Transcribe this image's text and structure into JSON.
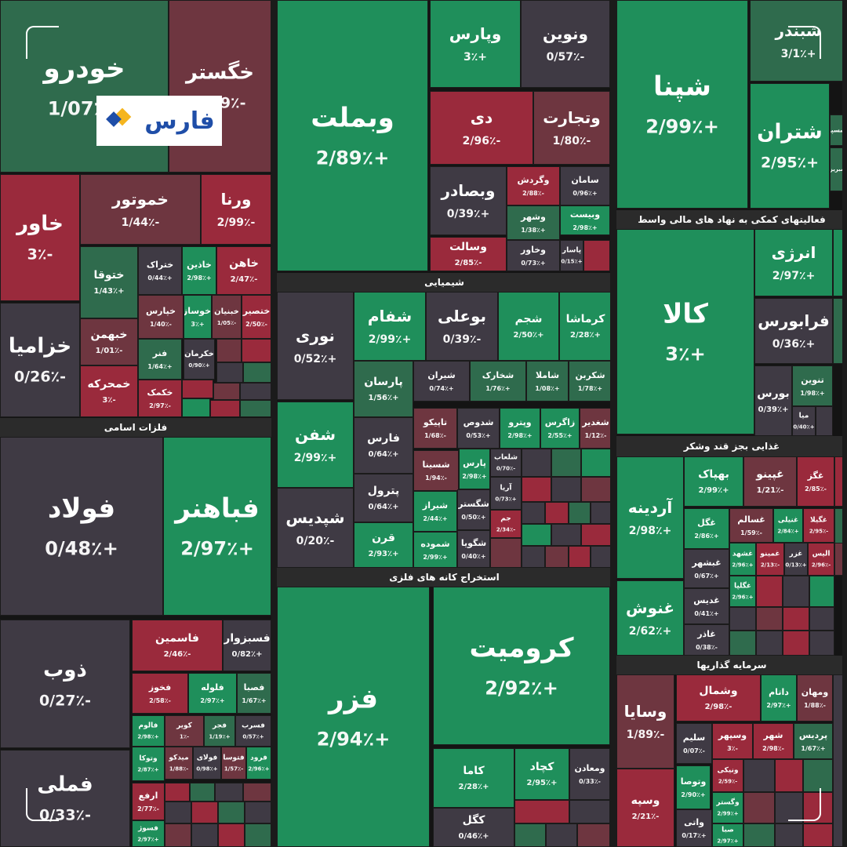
{
  "colors": {
    "green_strong": "#1f8f5b",
    "green_mid": "#2f6b4d",
    "red_strong": "#9a2a3c",
    "red_mid": "#6e3640",
    "neutral": "#3f3a44",
    "header_bg": "#2b2b2b"
  },
  "logo": {
    "text": "فارس",
    "icon": "fars-diamond-logo-icon"
  },
  "chart_data": {
    "type": "treemap",
    "sector_labels": {
      "fellaz": "فلزات اسامی",
      "shimiai": "شیمیایی",
      "estekhraj": "استخراج کانه های فلزی",
      "faaliat": "فعالیتهای کمکی به نهاد های مالی واسط",
      "ghazai": "غذایی بجز قند وشکر",
      "sarmaye": "سرمایه گذاریها"
    },
    "tiles": [
      {
        "name": "خودرو",
        "value": "+1/07٪",
        "c": 9
      },
      {
        "name": "خگستر",
        "value": "-1/39٪",
        "c": 8
      },
      {
        "name": "خاور",
        "value": "-3٪",
        "c": 1
      },
      {
        "name": "خموتور",
        "value": "-1/44٪",
        "c": 8
      },
      {
        "name": "ورنا",
        "value": "-2/99٪",
        "c": 1
      },
      {
        "name": "خزامیا",
        "value": "-0/26٪",
        "c": 0
      },
      {
        "name": "ختوقا",
        "value": "+1/43٪",
        "c": 9
      },
      {
        "name": "ختراک",
        "value": "+0/44٪",
        "c": 0
      },
      {
        "name": "خاذین",
        "value": "+2/98٪",
        "c": 2
      },
      {
        "name": "خاهن",
        "value": "-2/47٪",
        "c": 1
      },
      {
        "name": "خپارس",
        "value": "-1/40٪",
        "c": 8
      },
      {
        "name": "خوساز",
        "value": "+3٪",
        "c": 2
      },
      {
        "name": "خبنیان",
        "value": "-1/05٪",
        "c": 8
      },
      {
        "name": "ختصیر",
        "value": "-2/50٪",
        "c": 1
      },
      {
        "name": "خبهمن",
        "value": "-1/01٪",
        "c": 8
      },
      {
        "name": "فنر",
        "value": "+1/64٪",
        "c": 9
      },
      {
        "name": "خکرمان",
        "value": "+0/90٪",
        "c": 0
      },
      {
        "name": "خمحرکه",
        "value": "-3٪",
        "c": 1
      },
      {
        "name": "خکمک",
        "value": "-2/97٪",
        "c": 1
      },
      {
        "name": "وبملت",
        "value": "+2/89٪",
        "c": 2
      },
      {
        "name": "وپارس",
        "value": "+3٪",
        "c": 2
      },
      {
        "name": "ونوین",
        "value": "-0/57٪",
        "c": 0
      },
      {
        "name": "دی",
        "value": "-2/96٪",
        "c": 1
      },
      {
        "name": "وتجارت",
        "value": "-1/80٪",
        "c": 8
      },
      {
        "name": "وبصادر",
        "value": "+0/39٪",
        "c": 0
      },
      {
        "name": "وگردش",
        "value": "-2/88٪",
        "c": 1
      },
      {
        "name": "سامان",
        "value": "+0/96٪",
        "c": 0
      },
      {
        "name": "وشهر",
        "value": "+1/38٪",
        "c": 9
      },
      {
        "name": "وبیست",
        "value": "+2/98٪",
        "c": 2
      },
      {
        "name": "وسالت",
        "value": "-2/85٪",
        "c": 1
      },
      {
        "name": "وخاور",
        "value": "+0/73٪",
        "c": 0
      },
      {
        "name": "پاسار",
        "value": "+0/15٪",
        "c": 0
      },
      {
        "name": "شپنا",
        "value": "+2/99٪",
        "c": 2
      },
      {
        "name": "شبندر",
        "value": "+3/1٪",
        "c": 9
      },
      {
        "name": "شتران",
        "value": "+2/95٪",
        "c": 2
      },
      {
        "name": "شسپا",
        "value": "",
        "c": 9
      },
      {
        "name": "شبریز",
        "value": "",
        "c": 9
      },
      {
        "name": "نوری",
        "value": "+0/52٪",
        "c": 0
      },
      {
        "name": "شفام",
        "value": "+2/99٪",
        "c": 2
      },
      {
        "name": "بوعلی",
        "value": "-0/39٪",
        "c": 0
      },
      {
        "name": "شجم",
        "value": "+2/50٪",
        "c": 2
      },
      {
        "name": "کرماشا",
        "value": "+2/28٪",
        "c": 2
      },
      {
        "name": "پارسان",
        "value": "+1/56٪",
        "c": 9
      },
      {
        "name": "شیران",
        "value": "+0/74٪",
        "c": 0
      },
      {
        "name": "شخارک",
        "value": "+1/76٪",
        "c": 9
      },
      {
        "name": "شاملا",
        "value": "+1/08٪",
        "c": 9
      },
      {
        "name": "شکربن",
        "value": "+1/78٪",
        "c": 9
      },
      {
        "name": "شفن",
        "value": "+2/99٪",
        "c": 2
      },
      {
        "name": "تاپیکو",
        "value": "-1/68٪",
        "c": 8
      },
      {
        "name": "شدوص",
        "value": "+0/53٪",
        "c": 0
      },
      {
        "name": "وپترو",
        "value": "+2/98٪",
        "c": 2
      },
      {
        "name": "زاگرس",
        "value": "+2/55٪",
        "c": 2
      },
      {
        "name": "شغدیر",
        "value": "-1/12٪",
        "c": 8
      },
      {
        "name": "فارس",
        "value": "+0/64٪",
        "c": 0
      },
      {
        "name": "شسینا",
        "value": "-1/94٪",
        "c": 8
      },
      {
        "name": "پارس",
        "value": "+2/98٪",
        "c": 2
      },
      {
        "name": "شلعاب",
        "value": "-0/70٪",
        "c": 0
      },
      {
        "name": "شپدیس",
        "value": "-0/20٪",
        "c": 0
      },
      {
        "name": "پترول",
        "value": "+0/64٪",
        "c": 0
      },
      {
        "name": "شیراز",
        "value": "+2/44٪",
        "c": 2
      },
      {
        "name": "شگستر",
        "value": "+0/50٪",
        "c": 0
      },
      {
        "name": "آریا",
        "value": "+0/73٪",
        "c": 0
      },
      {
        "name": "قرن",
        "value": "+2/93٪",
        "c": 2
      },
      {
        "name": "شموده",
        "value": "+2/99٪",
        "c": 2
      },
      {
        "name": "شگویا",
        "value": "+0/40٪",
        "c": 0
      },
      {
        "name": "جم",
        "value": "-2/34٪",
        "c": 1
      },
      {
        "name": "فولاد",
        "value": "+0/48٪",
        "c": 0
      },
      {
        "name": "فباهنر",
        "value": "+2/97٪",
        "c": 2
      },
      {
        "name": "ذوب",
        "value": "-0/27٪",
        "c": 0
      },
      {
        "name": "فاسمین",
        "value": "-2/46٪",
        "c": 1
      },
      {
        "name": "فسبزوار",
        "value": "+0/82٪",
        "c": 0
      },
      {
        "name": "فخوز",
        "value": "-2/58٪",
        "c": 1
      },
      {
        "name": "فلوله",
        "value": "+2/97٪",
        "c": 2
      },
      {
        "name": "فصبا",
        "value": "+1/67٪",
        "c": 9
      },
      {
        "name": "فالوم",
        "value": "+2/98٪",
        "c": 2
      },
      {
        "name": "کویر",
        "value": "-1٪",
        "c": 8
      },
      {
        "name": "فجر",
        "value": "+1/19٪",
        "c": 9
      },
      {
        "name": "فسرب",
        "value": "+0/57٪",
        "c": 0
      },
      {
        "name": "فملی",
        "value": "-0/33٪",
        "c": 0
      },
      {
        "name": "وتوکا",
        "value": "+2/87٪",
        "c": 2
      },
      {
        "name": "میدکو",
        "value": "-1/88٪",
        "c": 8
      },
      {
        "name": "فولای",
        "value": "+0/98٪",
        "c": 0
      },
      {
        "name": "فتوسا",
        "value": "-1/57٪",
        "c": 8
      },
      {
        "name": "فرود",
        "value": "+2/96٪",
        "c": 2
      },
      {
        "name": "ارفع",
        "value": "-2/77٪",
        "c": 1
      },
      {
        "name": "فسوژ",
        "value": "+2/97٪",
        "c": 2
      },
      {
        "name": "فزر",
        "value": "+2/94٪",
        "c": 2
      },
      {
        "name": "کرومیت",
        "value": "+2/92٪",
        "c": 2
      },
      {
        "name": "کاما",
        "value": "+2/28٪",
        "c": 2
      },
      {
        "name": "کچاد",
        "value": "+2/95٪",
        "c": 2
      },
      {
        "name": "ومعادن",
        "value": "-0/33٪",
        "c": 0
      },
      {
        "name": "کگل",
        "value": "+0/46٪",
        "c": 0
      },
      {
        "name": "کالا",
        "value": "+3٪",
        "c": 2
      },
      {
        "name": "انرژی",
        "value": "+2/97٪",
        "c": 2
      },
      {
        "name": "فرابورس",
        "value": "+0/36٪",
        "c": 0
      },
      {
        "name": "بورس",
        "value": "+0/39٪",
        "c": 0
      },
      {
        "name": "تنوین",
        "value": "+1/98٪",
        "c": 9
      },
      {
        "name": "میا",
        "value": "+0/40٪",
        "c": 0
      },
      {
        "name": "آردینه",
        "value": "+2/98٪",
        "c": 2
      },
      {
        "name": "بهپاک",
        "value": "+2/99٪",
        "c": 2
      },
      {
        "name": "غپینو",
        "value": "-1/21٪",
        "c": 8
      },
      {
        "name": "غگز",
        "value": "-2/85٪",
        "c": 1
      },
      {
        "name": "غگل",
        "value": "+2/86٪",
        "c": 2
      },
      {
        "name": "غسالم",
        "value": "-1/59٪",
        "c": 8
      },
      {
        "name": "غنیلی",
        "value": "+2/84٪",
        "c": 2
      },
      {
        "name": "غگیلا",
        "value": "-2/95٪",
        "c": 1
      },
      {
        "name": "غبشهر",
        "value": "+0/67٪",
        "c": 0
      },
      {
        "name": "غشهد",
        "value": "+2/96٪",
        "c": 2
      },
      {
        "name": "غمینو",
        "value": "-2/13٪",
        "c": 1
      },
      {
        "name": "غزر",
        "value": "+0/13٪",
        "c": 0
      },
      {
        "name": "الیس",
        "value": "-2/96٪",
        "c": 1
      },
      {
        "name": "غگلپا",
        "value": "+2/96٪",
        "c": 2
      },
      {
        "name": "غنوش",
        "value": "+2/62٪",
        "c": 2
      },
      {
        "name": "غدیس",
        "value": "+0/41٪",
        "c": 0
      },
      {
        "name": "غاذر",
        "value": "-0/38٪",
        "c": 0
      },
      {
        "name": "وسایا",
        "value": "-1/89٪",
        "c": 8
      },
      {
        "name": "وشمال",
        "value": "-2/98٪",
        "c": 1
      },
      {
        "name": "داتام",
        "value": "+2/97٪",
        "c": 2
      },
      {
        "name": "ومهان",
        "value": "-1/88٪",
        "c": 8
      },
      {
        "name": "سلیم",
        "value": "-0/07٪",
        "c": 0
      },
      {
        "name": "وسپهر",
        "value": "-3٪",
        "c": 1
      },
      {
        "name": "شهر",
        "value": "-2/98٪",
        "c": 1
      },
      {
        "name": "پردیس",
        "value": "+1/67٪",
        "c": 9
      },
      {
        "name": "ونیکی",
        "value": "-2/59٪",
        "c": 1
      },
      {
        "name": "وتوصا",
        "value": "+2/90٪",
        "c": 2
      },
      {
        "name": "وگستر",
        "value": "+2/99٪",
        "c": 2
      },
      {
        "name": "وسپه",
        "value": "-2/21٪",
        "c": 1
      },
      {
        "name": "واتی",
        "value": "+0/17٪",
        "c": 0
      },
      {
        "name": "صبا",
        "value": "+2/97٪",
        "c": 2
      }
    ]
  }
}
